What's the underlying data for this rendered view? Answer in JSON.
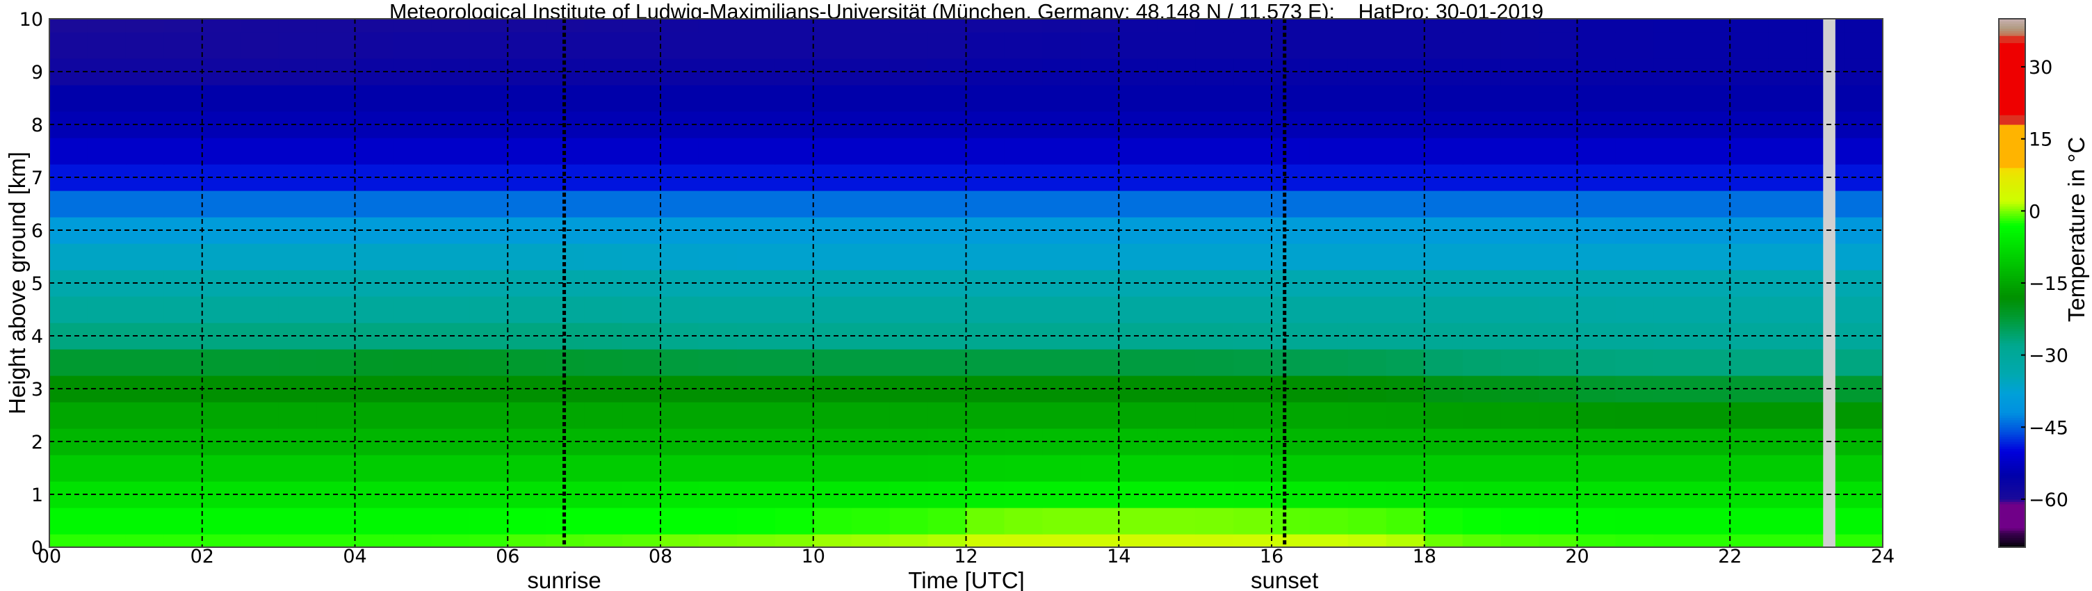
{
  "chart_data": {
    "type": "heatmap",
    "title": "Meteorological Institute of Ludwig-Maximilians-Universität (München, Germany; 48.148 N / 11.573 E):    HatPro: 30-01-2019",
    "xlabel": "Time [UTC]",
    "ylabel": "Height above ground [km]",
    "xlim": [
      0,
      24
    ],
    "ylim": [
      0,
      10
    ],
    "xticks": [
      "00",
      "02",
      "04",
      "06",
      "08",
      "10",
      "12",
      "14",
      "16",
      "18",
      "20",
      "22",
      "24"
    ],
    "yticks": [
      "0",
      "1",
      "2",
      "3",
      "4",
      "5",
      "6",
      "7",
      "8",
      "9",
      "10"
    ],
    "grid": true,
    "x_bin_edges": [
      0,
      2,
      4,
      6,
      8,
      10,
      12,
      14,
      16,
      18,
      20,
      22,
      24
    ],
    "heights_km": [
      0,
      0.5,
      1,
      1.5,
      2,
      2.5,
      3,
      3.5,
      4,
      4.5,
      5,
      5.5,
      6,
      6.5,
      7,
      7.5,
      8,
      8.5,
      9,
      9.5,
      10
    ],
    "z_temperature_c": [
      [
        -2,
        -2,
        -2,
        -1,
        0,
        1,
        3,
        3,
        2,
        -1,
        -2,
        -2
      ],
      [
        -4,
        -4,
        -4,
        -3,
        -3,
        -2,
        0,
        0,
        -1,
        -3,
        -4,
        -4
      ],
      [
        -7,
        -7,
        -7,
        -7,
        -6,
        -6,
        -5,
        -5,
        -6,
        -7,
        -7,
        -7
      ],
      [
        -10,
        -10,
        -10,
        -10,
        -10,
        -10,
        -9,
        -9,
        -10,
        -10,
        -10,
        -10
      ],
      [
        -13,
        -13,
        -13,
        -13,
        -13,
        -13,
        -12,
        -12,
        -13,
        -13,
        -13,
        -13
      ],
      [
        -15,
        -15,
        -15,
        -15,
        -15,
        -15,
        -15,
        -15,
        -15,
        -16,
        -17,
        -17
      ],
      [
        -18,
        -18,
        -18,
        -18,
        -18,
        -18,
        -18,
        -18,
        -18,
        -20,
        -22,
        -22
      ],
      [
        -22,
        -22,
        -21,
        -22,
        -23,
        -23,
        -23,
        -23,
        -24,
        -26,
        -27,
        -27
      ],
      [
        -27,
        -27,
        -27,
        -27,
        -28,
        -28,
        -28,
        -28,
        -29,
        -29,
        -30,
        -30
      ],
      [
        -30,
        -30,
        -30,
        -30,
        -31,
        -31,
        -31,
        -31,
        -31,
        -31,
        -32,
        -32
      ],
      [
        -33,
        -33,
        -33,
        -33,
        -34,
        -34,
        -34,
        -34,
        -34,
        -34,
        -34,
        -34
      ],
      [
        -36,
        -36,
        -36,
        -36,
        -37,
        -37,
        -37,
        -37,
        -37,
        -37,
        -37,
        -37
      ],
      [
        -39,
        -39,
        -39,
        -39,
        -39,
        -39,
        -39,
        -39,
        -39,
        -39,
        -40,
        -40
      ],
      [
        -44,
        -44,
        -44,
        -44,
        -44,
        -44,
        -44,
        -44,
        -44,
        -44,
        -44,
        -44
      ],
      [
        -49,
        -49,
        -49,
        -49,
        -49,
        -49,
        -49,
        -49,
        -49,
        -49,
        -49,
        -49
      ],
      [
        -52,
        -52,
        -52,
        -52,
        -52,
        -52,
        -52,
        -52,
        -52,
        -52,
        -52,
        -52
      ],
      [
        -54,
        -54,
        -54,
        -54,
        -54,
        -54,
        -54,
        -54,
        -54,
        -54,
        -54,
        -54
      ],
      [
        -55,
        -55,
        -55,
        -55,
        -55,
        -55,
        -55,
        -55,
        -55,
        -55,
        -55,
        -55
      ],
      [
        -58,
        -58,
        -57,
        -57,
        -57,
        -57,
        -56,
        -56,
        -56,
        -56,
        -56,
        -56
      ],
      [
        -59,
        -59,
        -58,
        -58,
        -58,
        -58,
        -57,
        -57,
        -57,
        -57,
        -56,
        -56
      ],
      [
        -60,
        -59,
        -59,
        -59,
        -58,
        -58,
        -58,
        -57,
        -57,
        -57,
        -56,
        -56
      ]
    ],
    "missing_data_interval_h": [
      23.22,
      23.38
    ],
    "annotations": [
      {
        "label": "sunrise",
        "time_h": 6.74
      },
      {
        "label": "sunset",
        "time_h": 16.17
      }
    ],
    "colorbar": {
      "label": "Temperature in °C",
      "range": [
        -70,
        40
      ],
      "ticks": [
        "30",
        "15",
        "0",
        "−15",
        "−30",
        "−45",
        "−60"
      ],
      "tick_values": [
        30,
        15,
        0,
        -15,
        -30,
        -45,
        -60
      ],
      "placement": "right",
      "colormap": [
        [
          -70,
          "#000000"
        ],
        [
          -68.5,
          "#200030"
        ],
        [
          -67,
          "#3a0050"
        ],
        [
          -66,
          "#700088"
        ],
        [
          -61,
          "#700088"
        ],
        [
          -60,
          "#1a0a99"
        ],
        [
          -55,
          "#0000aa"
        ],
        [
          -50,
          "#0000dd"
        ],
        [
          -46,
          "#0050e0"
        ],
        [
          -42,
          "#0090e0"
        ],
        [
          -38,
          "#00a0d8"
        ],
        [
          -34,
          "#00a8b0"
        ],
        [
          -28,
          "#00a890"
        ],
        [
          -22,
          "#009a30"
        ],
        [
          -18,
          "#009000"
        ],
        [
          -10,
          "#00cc00"
        ],
        [
          -3,
          "#00ff00"
        ],
        [
          2,
          "#ccff00"
        ],
        [
          6,
          "#dfee00"
        ],
        [
          9,
          "#f5dc00"
        ],
        [
          9.01,
          "#ffb400"
        ],
        [
          18,
          "#ffb400"
        ],
        [
          18.01,
          "#dd3020"
        ],
        [
          20,
          "#dd3020"
        ],
        [
          20.01,
          "#ee0000"
        ],
        [
          35,
          "#ee0000"
        ],
        [
          35.01,
          "#dd3020"
        ],
        [
          36.5,
          "#dd3020"
        ],
        [
          36.51,
          "#c87050"
        ],
        [
          38,
          "#b09a80"
        ],
        [
          40,
          "#c8b0b0"
        ]
      ]
    }
  }
}
